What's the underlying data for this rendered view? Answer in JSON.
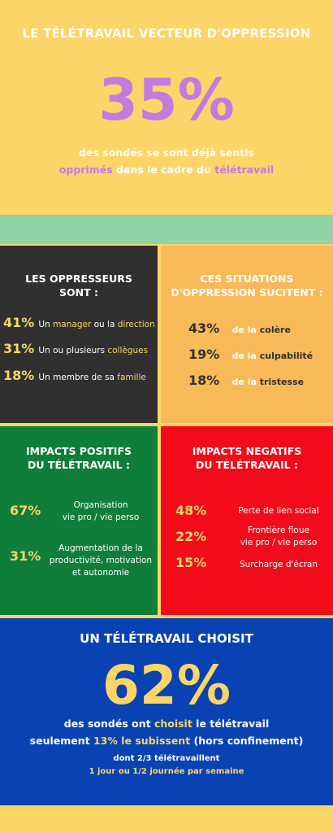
{
  "header": {
    "title": "LE TÉLÉTRAVAIL VECTEUR D'OPPRESSION",
    "big_percent": "35%",
    "line1": "des sondés se sont déjà sentis",
    "line2_a": "opprimés",
    "line2_b": " dans le cadre du ",
    "line2_c": "télétravail"
  },
  "oppresseurs": {
    "title_l1": "LES OPPRESSEURS",
    "title_l2": "SONT :",
    "items": [
      {
        "pct": "41%",
        "pre": "Un ",
        "hl": "manager",
        "mid": " ou la ",
        "hl2": "direction"
      },
      {
        "pct": "31%",
        "pre": "Un ou plusieurs ",
        "hl": "collègues",
        "mid": "",
        "hl2": ""
      },
      {
        "pct": "18%",
        "pre": "Un  membre de sa ",
        "hl": "famille",
        "mid": "",
        "hl2": ""
      }
    ]
  },
  "situations": {
    "title_l1": "CES SITUATIONS",
    "title_l2": "D'OPPRESSION SUCITENT :",
    "items": [
      {
        "pct": "43%",
        "pre": "de la ",
        "hl": "colère"
      },
      {
        "pct": "19%",
        "pre": "de la ",
        "hl": "culpabilité"
      },
      {
        "pct": "18%",
        "pre": "de la ",
        "hl": "tristesse"
      }
    ]
  },
  "positifs": {
    "title_l1": "IMPACTS POSITIFS",
    "title_l2": "DU TÉLÉTRAVAIL :",
    "items": [
      {
        "pct": "67%",
        "l1": "Organisation",
        "l2": "vie pro / vie perso",
        "l3": ""
      },
      {
        "pct": "31%",
        "l1": "Augmentation de la",
        "l2": "productivité, motivation",
        "l3": "et autonomie"
      }
    ]
  },
  "negatifs": {
    "title_l1": "IMPACTS NEGATIFS",
    "title_l2": "DU TÉLÉTRAVAIL :",
    "items": [
      {
        "pct": "48%",
        "l1": "Perte de lien social",
        "l2": ""
      },
      {
        "pct": "22%",
        "l1": "Frontière floue",
        "l2": "vie pro / vie perso"
      },
      {
        "pct": "15%",
        "l1": "Surcharge d'écran",
        "l2": ""
      }
    ]
  },
  "choisit": {
    "title": "UN TÉLÉTRAVAIL CHOISIT",
    "big_percent": "62%",
    "line1_a": "des sondés ont  ",
    "line1_b": "choisit",
    "line1_c": " le télétravail",
    "line2_a": "seulement ",
    "line2_b": "13% le subissent",
    "line2_c": " (hors confinement)",
    "line3": "dont 2/3  télétravaillent",
    "line4": "1 jour ou 1/2 journée par semaine"
  },
  "colors": {
    "background": "#fbd568",
    "accent_pink": "#c27ce0",
    "band_green": "#8fd3a6",
    "dark": "#303030",
    "orange": "#f8ba59",
    "green": "#0f7e3a",
    "red": "#f20c1b",
    "blue": "#0942b3"
  }
}
